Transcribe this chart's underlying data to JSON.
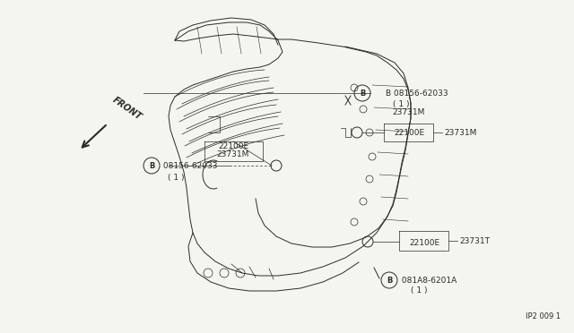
{
  "bg_color": "#f5f5f0",
  "line_color": "#2a2a2a",
  "fig_width": 6.4,
  "fig_height": 3.72,
  "dpi": 100,
  "diagram_id": "IP2 009 1",
  "labels_top_right": {
    "bolt_label": "B 08156-62033",
    "bolt_sub": "( 1 )",
    "sensor_label1": "22100E",
    "part_label1": "23731M"
  },
  "labels_left_mid": {
    "part_label": "23731M",
    "sensor_label": "22100E",
    "bolt_label": "B 08156-62033",
    "bolt_sub": "( 1 )"
  },
  "labels_bottom_right": {
    "sensor_label": "22100E",
    "part_label": "23731T",
    "bolt_label": "B 081A8-6201A",
    "bolt_sub": "( 1 )"
  },
  "front_text": "FRONT",
  "note": "IP2 009 1"
}
